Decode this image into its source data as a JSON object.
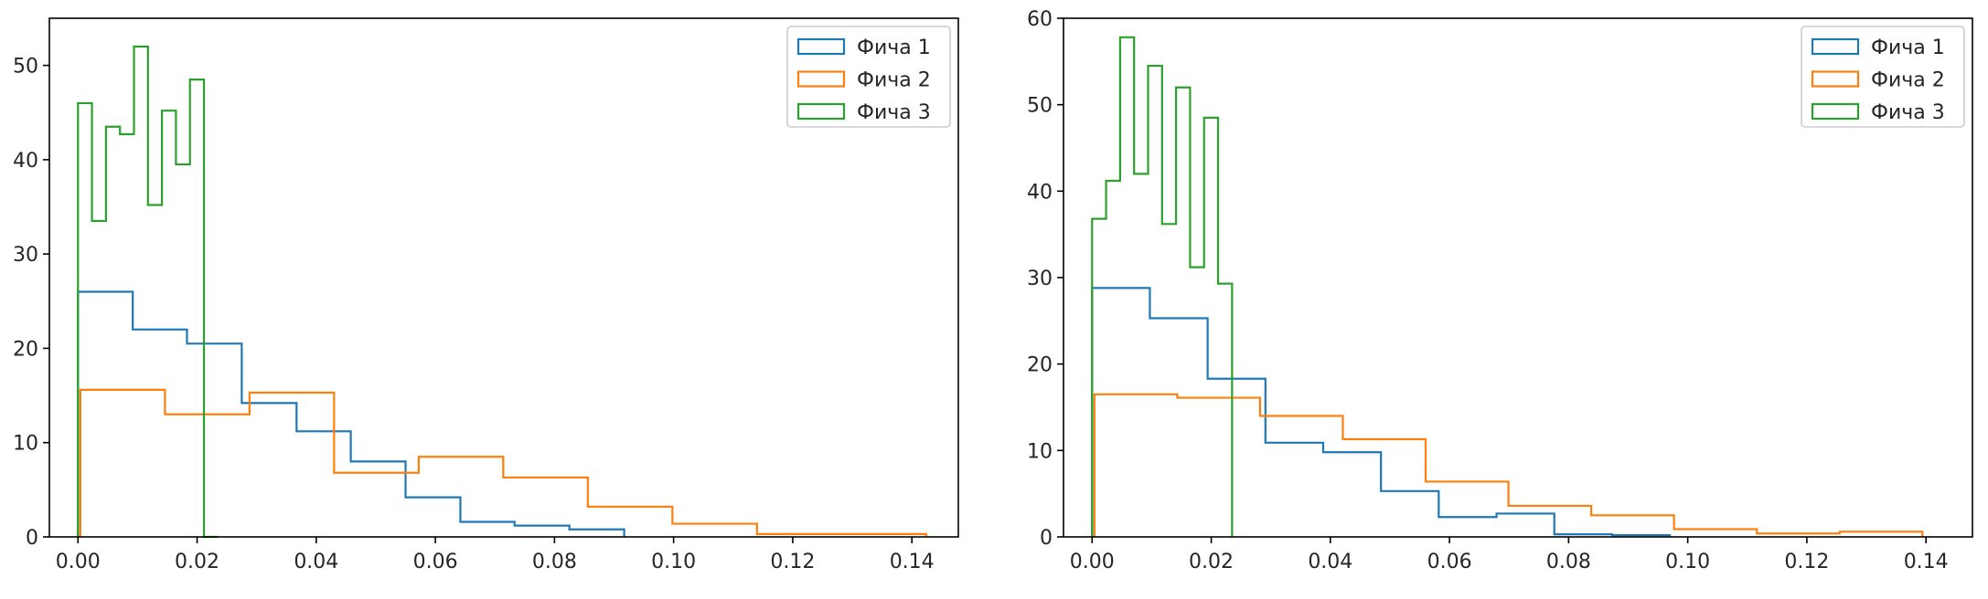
{
  "chart_data": [
    {
      "type": "histogram",
      "xlim": [
        -0.0048,
        0.1478
      ],
      "ylim": [
        0,
        55
      ],
      "xticks": [
        "0.00",
        "0.02",
        "0.04",
        "0.06",
        "0.08",
        "0.10",
        "0.12",
        "0.14"
      ],
      "xtick_values": [
        0,
        0.02,
        0.04,
        0.06,
        0.08,
        0.1,
        0.12,
        0.14
      ],
      "yticks": [
        "0",
        "10",
        "20",
        "30",
        "40",
        "50"
      ],
      "ytick_values": [
        0,
        10,
        20,
        30,
        40,
        50
      ],
      "legend": {
        "position": "upper right",
        "entries": [
          "Фича 1",
          "Фича 2",
          "Фича 3"
        ]
      },
      "series": [
        {
          "name": "Фича 1",
          "color": "#1f77b4",
          "edges": [
            0.0,
            0.0092,
            0.0183,
            0.0275,
            0.0367,
            0.0458,
            0.055,
            0.0642,
            0.0733,
            0.0825,
            0.0917
          ],
          "counts": [
            26,
            22,
            20.5,
            14.2,
            11.2,
            8,
            4.2,
            1.6,
            1.2,
            0.8
          ]
        },
        {
          "name": "Фича 2",
          "color": "#ff7f0e",
          "edges": [
            0.0004,
            0.0146,
            0.0288,
            0.043,
            0.0572,
            0.0714,
            0.0856,
            0.0998,
            0.114,
            0.1282,
            0.1424
          ],
          "counts": [
            15.6,
            13,
            15.3,
            6.8,
            8.5,
            6.3,
            3.2,
            1.4,
            0.3,
            0.3
          ]
        },
        {
          "name": "Фича 3",
          "color": "#2ca02c",
          "edges": [
            0.0,
            0.00235,
            0.0047,
            0.00705,
            0.0094,
            0.01175,
            0.0141,
            0.01645,
            0.0188,
            0.02115,
            0.0235
          ],
          "counts": [
            46,
            33.5,
            43.5,
            42.7,
            52,
            35.2,
            45.2,
            39.5,
            48.5,
            0
          ]
        }
      ]
    },
    {
      "type": "histogram",
      "xlim": [
        -0.0048,
        0.1478
      ],
      "ylim": [
        0,
        60
      ],
      "xticks": [
        "0.00",
        "0.02",
        "0.04",
        "0.06",
        "0.08",
        "0.10",
        "0.12",
        "0.14"
      ],
      "xtick_values": [
        0,
        0.02,
        0.04,
        0.06,
        0.08,
        0.1,
        0.12,
        0.14
      ],
      "yticks": [
        "0",
        "10",
        "20",
        "30",
        "40",
        "50",
        "60"
      ],
      "ytick_values": [
        0,
        10,
        20,
        30,
        40,
        50,
        60
      ],
      "legend": {
        "position": "upper right",
        "entries": [
          "Фича 1",
          "Фича 2",
          "Фича 3"
        ]
      },
      "series": [
        {
          "name": "Фича 1",
          "color": "#1f77b4",
          "edges": [
            0.0,
            0.0097,
            0.0194,
            0.0291,
            0.0388,
            0.0485,
            0.0582,
            0.0679,
            0.0776,
            0.0873,
            0.097
          ],
          "counts": [
            28.8,
            25.3,
            18.3,
            10.9,
            9.8,
            5.3,
            2.3,
            2.7,
            0.3,
            0.2
          ]
        },
        {
          "name": "Фича 2",
          "color": "#ff7f0e",
          "edges": [
            0.0004,
            0.0143,
            0.0282,
            0.0421,
            0.056,
            0.0699,
            0.0838,
            0.0977,
            0.1116,
            0.1255,
            0.1394
          ],
          "counts": [
            16.5,
            16.1,
            14,
            11.3,
            6.4,
            3.6,
            2.5,
            0.9,
            0.4,
            0.6
          ]
        },
        {
          "name": "Фича 3",
          "color": "#2ca02c",
          "edges": [
            0.0,
            0.00235,
            0.0047,
            0.00705,
            0.0094,
            0.01175,
            0.0141,
            0.01645,
            0.0188,
            0.02115,
            0.0235
          ],
          "counts": [
            36.8,
            41.2,
            57.8,
            42,
            54.5,
            36.2,
            52,
            31.2,
            48.5,
            29.3
          ]
        }
      ]
    }
  ]
}
